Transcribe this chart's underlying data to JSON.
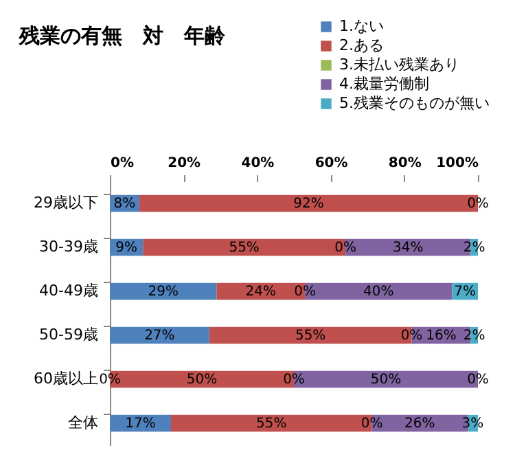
{
  "chart_data": {
    "type": "bar",
    "orientation": "horizontal",
    "stacked": true,
    "title": "残業の有無　対　年齢",
    "categories": [
      "29歳以下",
      "30-39歳",
      "40-49歳",
      "50-59歳",
      "60歳以上",
      "全体"
    ],
    "series": [
      {
        "name": "1.ない",
        "color": "#4f81bd",
        "values": [
          8,
          9,
          29,
          27,
          0,
          16.6
        ],
        "value_labels": [
          "8%",
          "9%",
          "29%",
          "27%",
          null,
          "17%"
        ]
      },
      {
        "name": "2.ある",
        "color": "#c0504d",
        "values": [
          92,
          55,
          24,
          55,
          50,
          54.6
        ],
        "value_labels": [
          "92%",
          "55%",
          "24%",
          "55%",
          "50%",
          "55%"
        ]
      },
      {
        "name": "3.未払い残業あり",
        "color": "#9bbb59",
        "values": [
          0,
          0,
          0,
          0,
          0,
          0
        ],
        "value_labels": [
          null,
          null,
          null,
          null,
          null,
          null
        ]
      },
      {
        "name": "4.裁量労働制",
        "color": "#8064a2",
        "values": [
          0,
          34,
          40,
          16,
          50,
          26
        ],
        "value_labels": [
          null,
          "34%",
          "40%",
          "16%",
          "50%",
          "26%"
        ]
      },
      {
        "name": "5.残業そのものが無い",
        "color": "#4bacc6",
        "values": [
          0,
          2,
          7,
          2,
          0,
          2.8
        ],
        "value_labels": [
          null,
          "2%",
          "7%",
          "2%",
          null,
          "3%"
        ]
      }
    ],
    "annotations": [
      {
        "text": "0%",
        "x": 100,
        "y": "29歳以下"
      },
      {
        "text": "0%",
        "x": 64,
        "y": "30-39歳"
      },
      {
        "text": "0%",
        "x": 53,
        "y": "40-49歳"
      },
      {
        "text": "0%",
        "x": 82,
        "y": "50-59歳"
      },
      {
        "text": "0%",
        "x": 0,
        "y": "60歳以上"
      },
      {
        "text": "0%",
        "x": 50,
        "y": "60歳以上"
      },
      {
        "text": "0%",
        "x": 100,
        "y": "60歳以上"
      },
      {
        "text": "0%",
        "x": 71.2,
        "y": "全体"
      }
    ],
    "xlim": [
      0,
      100
    ],
    "xticks": [
      {
        "value": 0,
        "label": "0%"
      },
      {
        "value": 20,
        "label": "20%"
      },
      {
        "value": 40,
        "label": "40%"
      },
      {
        "value": 60,
        "label": "60%"
      },
      {
        "value": 80,
        "label": "80%"
      },
      {
        "value": 100,
        "label": "100%"
      }
    ],
    "grid": false,
    "legend": "top right"
  }
}
